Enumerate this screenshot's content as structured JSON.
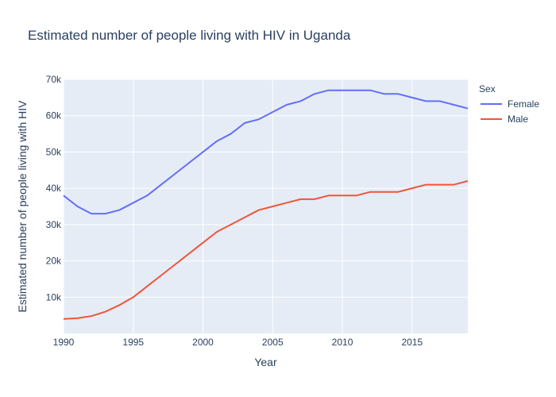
{
  "chart_data": {
    "type": "line",
    "title": "Estimated number of people living with HIV in Uganda",
    "xlabel": "Year",
    "ylabel": "Estimated number of people living with HIV",
    "xlim": [
      1990,
      2019
    ],
    "ylim": [
      0,
      70000
    ],
    "x_ticks": [
      1990,
      1995,
      2000,
      2005,
      2010,
      2015
    ],
    "x_tick_labels": [
      "1990",
      "1995",
      "2000",
      "2005",
      "2010",
      "2015"
    ],
    "y_ticks": [
      10000,
      20000,
      30000,
      40000,
      50000,
      60000,
      70000
    ],
    "y_tick_labels": [
      "10k",
      "20k",
      "30k",
      "40k",
      "50k",
      "60k",
      "70k"
    ],
    "grid": true,
    "legend_title": "Sex",
    "legend_position": "right",
    "x": [
      1990,
      1991,
      1992,
      1993,
      1994,
      1995,
      1996,
      1997,
      1998,
      1999,
      2000,
      2001,
      2002,
      2003,
      2004,
      2005,
      2006,
      2007,
      2008,
      2009,
      2010,
      2011,
      2012,
      2013,
      2014,
      2015,
      2016,
      2017,
      2018,
      2019
    ],
    "series": [
      {
        "name": "Female",
        "color": "#636efa",
        "values": [
          38000,
          35000,
          33000,
          33000,
          34000,
          36000,
          38000,
          41000,
          44000,
          47000,
          50000,
          53000,
          55000,
          58000,
          59000,
          61000,
          63000,
          64000,
          66000,
          67000,
          67000,
          67000,
          67000,
          66000,
          66000,
          65000,
          64000,
          64000,
          63000,
          62000
        ]
      },
      {
        "name": "Male",
        "color": "#ef553b",
        "values": [
          4000,
          4200,
          4800,
          6000,
          7800,
          10000,
          13000,
          16000,
          19000,
          22000,
          25000,
          28000,
          30000,
          32000,
          34000,
          35000,
          36000,
          37000,
          37000,
          38000,
          38000,
          38000,
          39000,
          39000,
          39000,
          40000,
          41000,
          41000,
          41000,
          42000
        ]
      }
    ]
  }
}
